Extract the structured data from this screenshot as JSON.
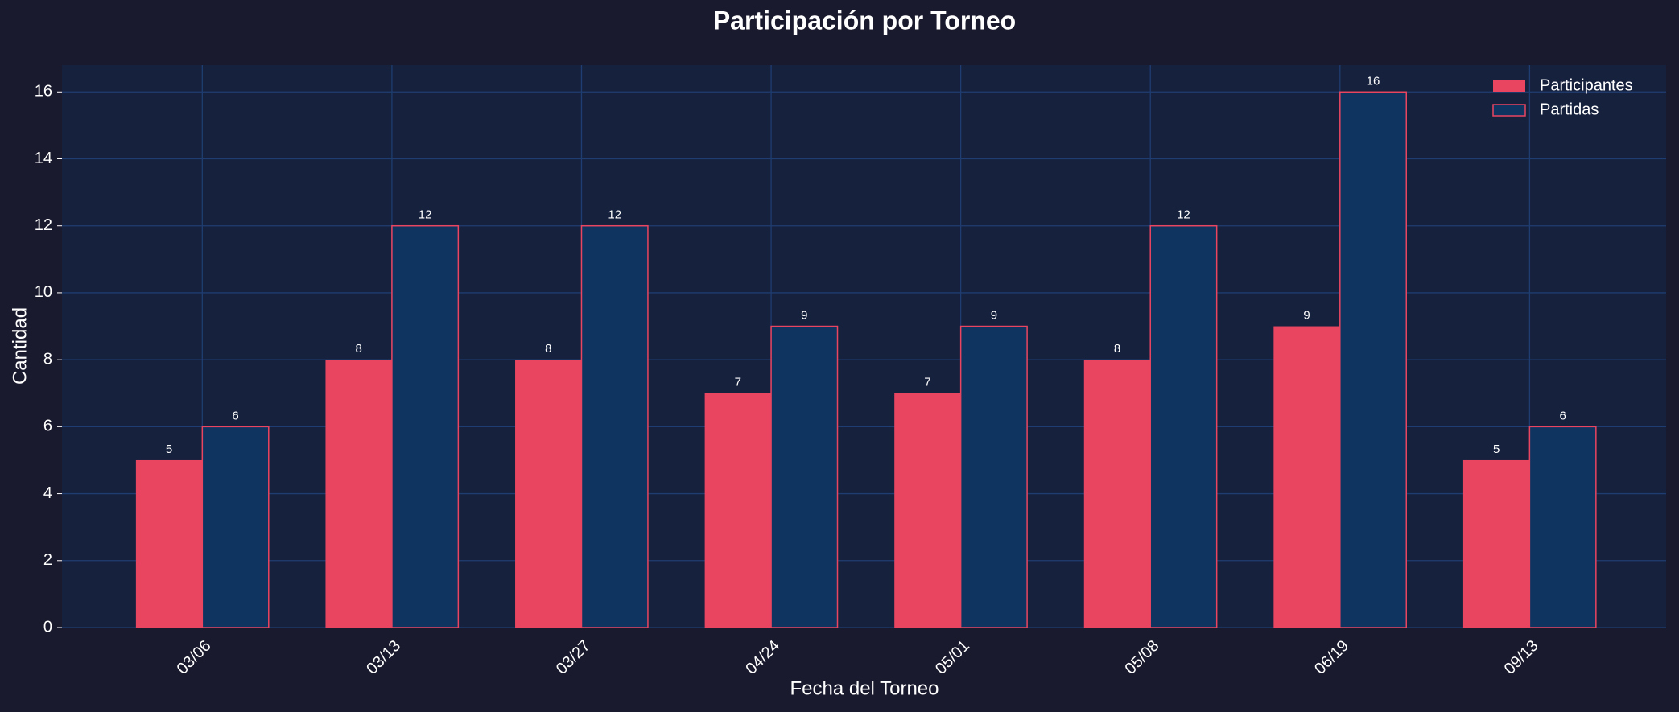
{
  "chart_data": {
    "type": "bar",
    "title": "Participación por Torneo",
    "x_label": "Fecha del Torneo",
    "y_label": "Cantidad",
    "categories": [
      "03/06",
      "03/13",
      "03/27",
      "04/24",
      "05/01",
      "05/08",
      "06/19",
      "09/13"
    ],
    "series": [
      {
        "name": "Participantes",
        "color": "#e94560",
        "values": [
          5,
          8,
          8,
          7,
          7,
          8,
          9,
          5
        ]
      },
      {
        "name": "Partidas",
        "color": "#0f3460",
        "edgecolor": "#e94560",
        "values": [
          6,
          12,
          12,
          9,
          9,
          12,
          16,
          6
        ]
      }
    ],
    "ylim": [
      0,
      16.8
    ],
    "yticks": [
      0,
      2,
      4,
      6,
      8,
      10,
      12,
      14,
      16
    ],
    "grid": true,
    "legend": "upper right"
  }
}
